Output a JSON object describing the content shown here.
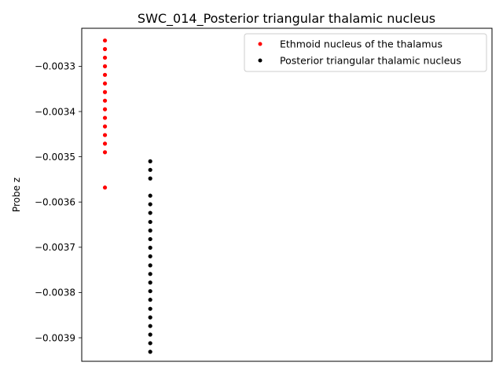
{
  "chart_data": {
    "type": "scatter",
    "title": "SWC_014_Posterior triangular thalamic nucleus",
    "xlabel": "",
    "ylabel": "Probe z",
    "x_ticks_visible": false,
    "ylim": [
      -0.003952,
      -0.003216
    ],
    "xlim": [
      0,
      1
    ],
    "yticks": [
      -0.0033,
      -0.0034,
      -0.0035,
      -0.0036,
      -0.0037,
      -0.0038,
      -0.0039
    ],
    "ytick_labels": [
      "−0.0033",
      "−0.0034",
      "−0.0035",
      "−0.0036",
      "−0.0037",
      "−0.0038",
      "−0.0039"
    ],
    "grid": false,
    "legend_position": "top-right",
    "series": [
      {
        "name": "Ethmoid nucleus of the thalamus",
        "color": "#ff0000",
        "x": [
          0.0566,
          0.0566,
          0.0566,
          0.0566,
          0.0566,
          0.0566,
          0.0566,
          0.0566,
          0.0566,
          0.0566,
          0.0566,
          0.0566,
          0.0566,
          0.0566,
          0.0566
        ],
        "y": [
          -0.003243,
          -0.003262,
          -0.003281,
          -0.0033,
          -0.003319,
          -0.003338,
          -0.003357,
          -0.003376,
          -0.003395,
          -0.003414,
          -0.003433,
          -0.003452,
          -0.003471,
          -0.00349,
          -0.003568
        ]
      },
      {
        "name": "Posterior triangular thalamic nucleus",
        "color": "#000000",
        "x": [
          0.167,
          0.167,
          0.167,
          0.167,
          0.167,
          0.167,
          0.167,
          0.167,
          0.167,
          0.167,
          0.167,
          0.167,
          0.167,
          0.167,
          0.167,
          0.167,
          0.167,
          0.167,
          0.167,
          0.167,
          0.167,
          0.167
        ],
        "y": [
          -0.00351,
          -0.003529,
          -0.003548,
          -0.003586,
          -0.003605,
          -0.003624,
          -0.003644,
          -0.003663,
          -0.003682,
          -0.003701,
          -0.00372,
          -0.00374,
          -0.003759,
          -0.003778,
          -0.003797,
          -0.003816,
          -0.003836,
          -0.003855,
          -0.003874,
          -0.003893,
          -0.003912,
          -0.003931
        ]
      }
    ]
  }
}
